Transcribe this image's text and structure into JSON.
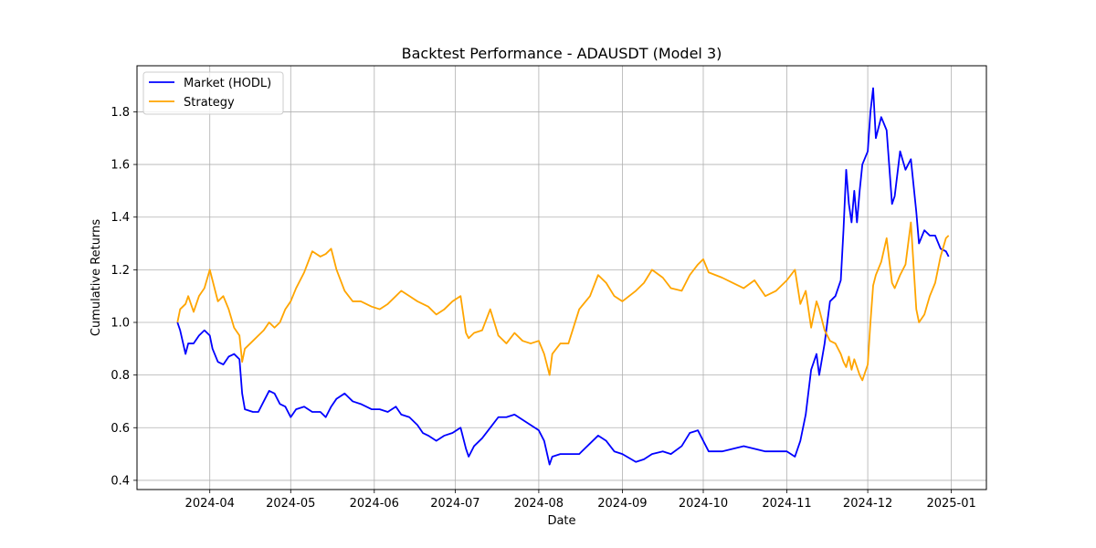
{
  "chart_data": {
    "type": "line",
    "title": "Backtest Performance - ADAUSDT (Model 3)",
    "xlabel": "Date",
    "ylabel": "Cumulative Returns",
    "xlim": [
      "2024-03-05",
      "2025-01-14"
    ],
    "ylim": [
      0.365,
      1.975
    ],
    "x_ticks": [
      "2024-04-01",
      "2024-05-01",
      "2024-06-01",
      "2024-07-01",
      "2024-08-01",
      "2024-09-01",
      "2024-10-01",
      "2024-11-01",
      "2024-12-01",
      "2025-01-01"
    ],
    "x_tick_labels": [
      "2024-04",
      "2024-05",
      "2024-06",
      "2024-07",
      "2024-08",
      "2024-09",
      "2024-10",
      "2024-11",
      "2024-12",
      "2025-01"
    ],
    "y_ticks": [
      0.4,
      0.6,
      0.8,
      1.0,
      1.2,
      1.4,
      1.6,
      1.8
    ],
    "y_tick_labels": [
      "0.4",
      "0.6",
      "0.8",
      "1.0",
      "1.2",
      "1.4",
      "1.6",
      "1.8"
    ],
    "grid": true,
    "legend_position": "top-left",
    "series": [
      {
        "name": "Market (HODL)",
        "color": "#0000ff",
        "points": [
          [
            "2024-03-20",
            1.0
          ],
          [
            "2024-03-21",
            0.97
          ],
          [
            "2024-03-23",
            0.88
          ],
          [
            "2024-03-24",
            0.92
          ],
          [
            "2024-03-26",
            0.92
          ],
          [
            "2024-03-28",
            0.95
          ],
          [
            "2024-03-30",
            0.97
          ],
          [
            "2024-04-01",
            0.95
          ],
          [
            "2024-04-02",
            0.9
          ],
          [
            "2024-04-04",
            0.85
          ],
          [
            "2024-04-06",
            0.84
          ],
          [
            "2024-04-08",
            0.87
          ],
          [
            "2024-04-10",
            0.88
          ],
          [
            "2024-04-12",
            0.86
          ],
          [
            "2024-04-13",
            0.73
          ],
          [
            "2024-04-14",
            0.67
          ],
          [
            "2024-04-17",
            0.66
          ],
          [
            "2024-04-19",
            0.66
          ],
          [
            "2024-04-21",
            0.7
          ],
          [
            "2024-04-23",
            0.74
          ],
          [
            "2024-04-25",
            0.73
          ],
          [
            "2024-04-27",
            0.69
          ],
          [
            "2024-04-29",
            0.68
          ],
          [
            "2024-05-01",
            0.64
          ],
          [
            "2024-05-03",
            0.67
          ],
          [
            "2024-05-06",
            0.68
          ],
          [
            "2024-05-09",
            0.66
          ],
          [
            "2024-05-12",
            0.66
          ],
          [
            "2024-05-14",
            0.64
          ],
          [
            "2024-05-16",
            0.68
          ],
          [
            "2024-05-18",
            0.71
          ],
          [
            "2024-05-21",
            0.73
          ],
          [
            "2024-05-24",
            0.7
          ],
          [
            "2024-05-27",
            0.69
          ],
          [
            "2024-05-31",
            0.67
          ],
          [
            "2024-06-03",
            0.67
          ],
          [
            "2024-06-06",
            0.66
          ],
          [
            "2024-06-09",
            0.68
          ],
          [
            "2024-06-11",
            0.65
          ],
          [
            "2024-06-14",
            0.64
          ],
          [
            "2024-06-17",
            0.61
          ],
          [
            "2024-06-19",
            0.58
          ],
          [
            "2024-06-21",
            0.57
          ],
          [
            "2024-06-24",
            0.55
          ],
          [
            "2024-06-27",
            0.57
          ],
          [
            "2024-06-30",
            0.58
          ],
          [
            "2024-07-03",
            0.6
          ],
          [
            "2024-07-05",
            0.52
          ],
          [
            "2024-07-06",
            0.49
          ],
          [
            "2024-07-08",
            0.53
          ],
          [
            "2024-07-11",
            0.56
          ],
          [
            "2024-07-14",
            0.6
          ],
          [
            "2024-07-17",
            0.64
          ],
          [
            "2024-07-20",
            0.64
          ],
          [
            "2024-07-23",
            0.65
          ],
          [
            "2024-07-26",
            0.63
          ],
          [
            "2024-07-29",
            0.61
          ],
          [
            "2024-08-01",
            0.59
          ],
          [
            "2024-08-03",
            0.55
          ],
          [
            "2024-08-05",
            0.46
          ],
          [
            "2024-08-06",
            0.49
          ],
          [
            "2024-08-09",
            0.5
          ],
          [
            "2024-08-12",
            0.5
          ],
          [
            "2024-08-16",
            0.5
          ],
          [
            "2024-08-20",
            0.54
          ],
          [
            "2024-08-23",
            0.57
          ],
          [
            "2024-08-26",
            0.55
          ],
          [
            "2024-08-29",
            0.51
          ],
          [
            "2024-09-01",
            0.5
          ],
          [
            "2024-09-06",
            0.47
          ],
          [
            "2024-09-09",
            0.48
          ],
          [
            "2024-09-12",
            0.5
          ],
          [
            "2024-09-16",
            0.51
          ],
          [
            "2024-09-19",
            0.5
          ],
          [
            "2024-09-23",
            0.53
          ],
          [
            "2024-09-26",
            0.58
          ],
          [
            "2024-09-29",
            0.59
          ],
          [
            "2024-10-01",
            0.55
          ],
          [
            "2024-10-03",
            0.51
          ],
          [
            "2024-10-08",
            0.51
          ],
          [
            "2024-10-12",
            0.52
          ],
          [
            "2024-10-16",
            0.53
          ],
          [
            "2024-10-20",
            0.52
          ],
          [
            "2024-10-24",
            0.51
          ],
          [
            "2024-10-28",
            0.51
          ],
          [
            "2024-11-01",
            0.51
          ],
          [
            "2024-11-04",
            0.49
          ],
          [
            "2024-11-06",
            0.55
          ],
          [
            "2024-11-08",
            0.65
          ],
          [
            "2024-11-10",
            0.82
          ],
          [
            "2024-11-12",
            0.88
          ],
          [
            "2024-11-13",
            0.8
          ],
          [
            "2024-11-15",
            0.92
          ],
          [
            "2024-11-17",
            1.08
          ],
          [
            "2024-11-19",
            1.1
          ],
          [
            "2024-11-21",
            1.16
          ],
          [
            "2024-11-22",
            1.35
          ],
          [
            "2024-11-23",
            1.58
          ],
          [
            "2024-11-24",
            1.45
          ],
          [
            "2024-11-25",
            1.38
          ],
          [
            "2024-11-26",
            1.5
          ],
          [
            "2024-11-27",
            1.38
          ],
          [
            "2024-11-28",
            1.5
          ],
          [
            "2024-11-29",
            1.6
          ],
          [
            "2024-12-01",
            1.65
          ],
          [
            "2024-12-02",
            1.8
          ],
          [
            "2024-12-03",
            1.89
          ],
          [
            "2024-12-04",
            1.7
          ],
          [
            "2024-12-06",
            1.78
          ],
          [
            "2024-12-08",
            1.73
          ],
          [
            "2024-12-10",
            1.45
          ],
          [
            "2024-12-11",
            1.48
          ],
          [
            "2024-12-13",
            1.65
          ],
          [
            "2024-12-15",
            1.58
          ],
          [
            "2024-12-17",
            1.62
          ],
          [
            "2024-12-19",
            1.42
          ],
          [
            "2024-12-20",
            1.3
          ],
          [
            "2024-12-22",
            1.35
          ],
          [
            "2024-12-24",
            1.33
          ],
          [
            "2024-12-26",
            1.33
          ],
          [
            "2024-12-28",
            1.28
          ],
          [
            "2024-12-30",
            1.27
          ],
          [
            "2024-12-31",
            1.25
          ]
        ]
      },
      {
        "name": "Strategy",
        "color": "#ffa500",
        "points": [
          [
            "2024-03-20",
            1.0
          ],
          [
            "2024-03-21",
            1.05
          ],
          [
            "2024-03-23",
            1.07
          ],
          [
            "2024-03-24",
            1.1
          ],
          [
            "2024-03-26",
            1.04
          ],
          [
            "2024-03-28",
            1.1
          ],
          [
            "2024-03-30",
            1.13
          ],
          [
            "2024-04-01",
            1.2
          ],
          [
            "2024-04-02",
            1.16
          ],
          [
            "2024-04-04",
            1.08
          ],
          [
            "2024-04-06",
            1.1
          ],
          [
            "2024-04-08",
            1.05
          ],
          [
            "2024-04-10",
            0.98
          ],
          [
            "2024-04-12",
            0.95
          ],
          [
            "2024-04-13",
            0.85
          ],
          [
            "2024-04-14",
            0.9
          ],
          [
            "2024-04-17",
            0.93
          ],
          [
            "2024-04-19",
            0.95
          ],
          [
            "2024-04-21",
            0.97
          ],
          [
            "2024-04-23",
            1.0
          ],
          [
            "2024-04-25",
            0.98
          ],
          [
            "2024-04-27",
            1.0
          ],
          [
            "2024-04-29",
            1.05
          ],
          [
            "2024-05-01",
            1.08
          ],
          [
            "2024-05-03",
            1.13
          ],
          [
            "2024-05-06",
            1.19
          ],
          [
            "2024-05-09",
            1.27
          ],
          [
            "2024-05-12",
            1.25
          ],
          [
            "2024-05-14",
            1.26
          ],
          [
            "2024-05-16",
            1.28
          ],
          [
            "2024-05-18",
            1.2
          ],
          [
            "2024-05-21",
            1.12
          ],
          [
            "2024-05-24",
            1.08
          ],
          [
            "2024-05-27",
            1.08
          ],
          [
            "2024-05-31",
            1.06
          ],
          [
            "2024-06-03",
            1.05
          ],
          [
            "2024-06-06",
            1.07
          ],
          [
            "2024-06-09",
            1.1
          ],
          [
            "2024-06-11",
            1.12
          ],
          [
            "2024-06-14",
            1.1
          ],
          [
            "2024-06-17",
            1.08
          ],
          [
            "2024-06-19",
            1.07
          ],
          [
            "2024-06-21",
            1.06
          ],
          [
            "2024-06-24",
            1.03
          ],
          [
            "2024-06-27",
            1.05
          ],
          [
            "2024-06-30",
            1.08
          ],
          [
            "2024-07-03",
            1.1
          ],
          [
            "2024-07-05",
            0.96
          ],
          [
            "2024-07-06",
            0.94
          ],
          [
            "2024-07-08",
            0.96
          ],
          [
            "2024-07-11",
            0.97
          ],
          [
            "2024-07-14",
            1.05
          ],
          [
            "2024-07-17",
            0.95
          ],
          [
            "2024-07-20",
            0.92
          ],
          [
            "2024-07-23",
            0.96
          ],
          [
            "2024-07-26",
            0.93
          ],
          [
            "2024-07-29",
            0.92
          ],
          [
            "2024-08-01",
            0.93
          ],
          [
            "2024-08-03",
            0.88
          ],
          [
            "2024-08-05",
            0.8
          ],
          [
            "2024-08-06",
            0.88
          ],
          [
            "2024-08-09",
            0.92
          ],
          [
            "2024-08-12",
            0.92
          ],
          [
            "2024-08-16",
            1.05
          ],
          [
            "2024-08-20",
            1.1
          ],
          [
            "2024-08-23",
            1.18
          ],
          [
            "2024-08-26",
            1.15
          ],
          [
            "2024-08-29",
            1.1
          ],
          [
            "2024-09-01",
            1.08
          ],
          [
            "2024-09-06",
            1.12
          ],
          [
            "2024-09-09",
            1.15
          ],
          [
            "2024-09-12",
            1.2
          ],
          [
            "2024-09-16",
            1.17
          ],
          [
            "2024-09-19",
            1.13
          ],
          [
            "2024-09-23",
            1.12
          ],
          [
            "2024-09-26",
            1.18
          ],
          [
            "2024-09-29",
            1.22
          ],
          [
            "2024-10-01",
            1.24
          ],
          [
            "2024-10-03",
            1.19
          ],
          [
            "2024-10-08",
            1.17
          ],
          [
            "2024-10-12",
            1.15
          ],
          [
            "2024-10-16",
            1.13
          ],
          [
            "2024-10-20",
            1.16
          ],
          [
            "2024-10-24",
            1.1
          ],
          [
            "2024-10-28",
            1.12
          ],
          [
            "2024-11-01",
            1.16
          ],
          [
            "2024-11-04",
            1.2
          ],
          [
            "2024-11-06",
            1.07
          ],
          [
            "2024-11-08",
            1.12
          ],
          [
            "2024-11-10",
            0.98
          ],
          [
            "2024-11-12",
            1.08
          ],
          [
            "2024-11-13",
            1.05
          ],
          [
            "2024-11-15",
            0.97
          ],
          [
            "2024-11-17",
            0.93
          ],
          [
            "2024-11-19",
            0.92
          ],
          [
            "2024-11-21",
            0.88
          ],
          [
            "2024-11-22",
            0.85
          ],
          [
            "2024-11-23",
            0.83
          ],
          [
            "2024-11-24",
            0.87
          ],
          [
            "2024-11-25",
            0.82
          ],
          [
            "2024-11-26",
            0.86
          ],
          [
            "2024-11-27",
            0.83
          ],
          [
            "2024-11-28",
            0.8
          ],
          [
            "2024-11-29",
            0.78
          ],
          [
            "2024-12-01",
            0.84
          ],
          [
            "2024-12-02",
            1.0
          ],
          [
            "2024-12-03",
            1.14
          ],
          [
            "2024-12-04",
            1.18
          ],
          [
            "2024-12-06",
            1.23
          ],
          [
            "2024-12-08",
            1.32
          ],
          [
            "2024-12-10",
            1.15
          ],
          [
            "2024-12-11",
            1.13
          ],
          [
            "2024-12-13",
            1.18
          ],
          [
            "2024-12-15",
            1.22
          ],
          [
            "2024-12-17",
            1.38
          ],
          [
            "2024-12-19",
            1.05
          ],
          [
            "2024-12-20",
            1.0
          ],
          [
            "2024-12-22",
            1.03
          ],
          [
            "2024-12-24",
            1.1
          ],
          [
            "2024-12-26",
            1.15
          ],
          [
            "2024-12-28",
            1.25
          ],
          [
            "2024-12-30",
            1.32
          ],
          [
            "2024-12-31",
            1.33
          ]
        ]
      }
    ]
  }
}
